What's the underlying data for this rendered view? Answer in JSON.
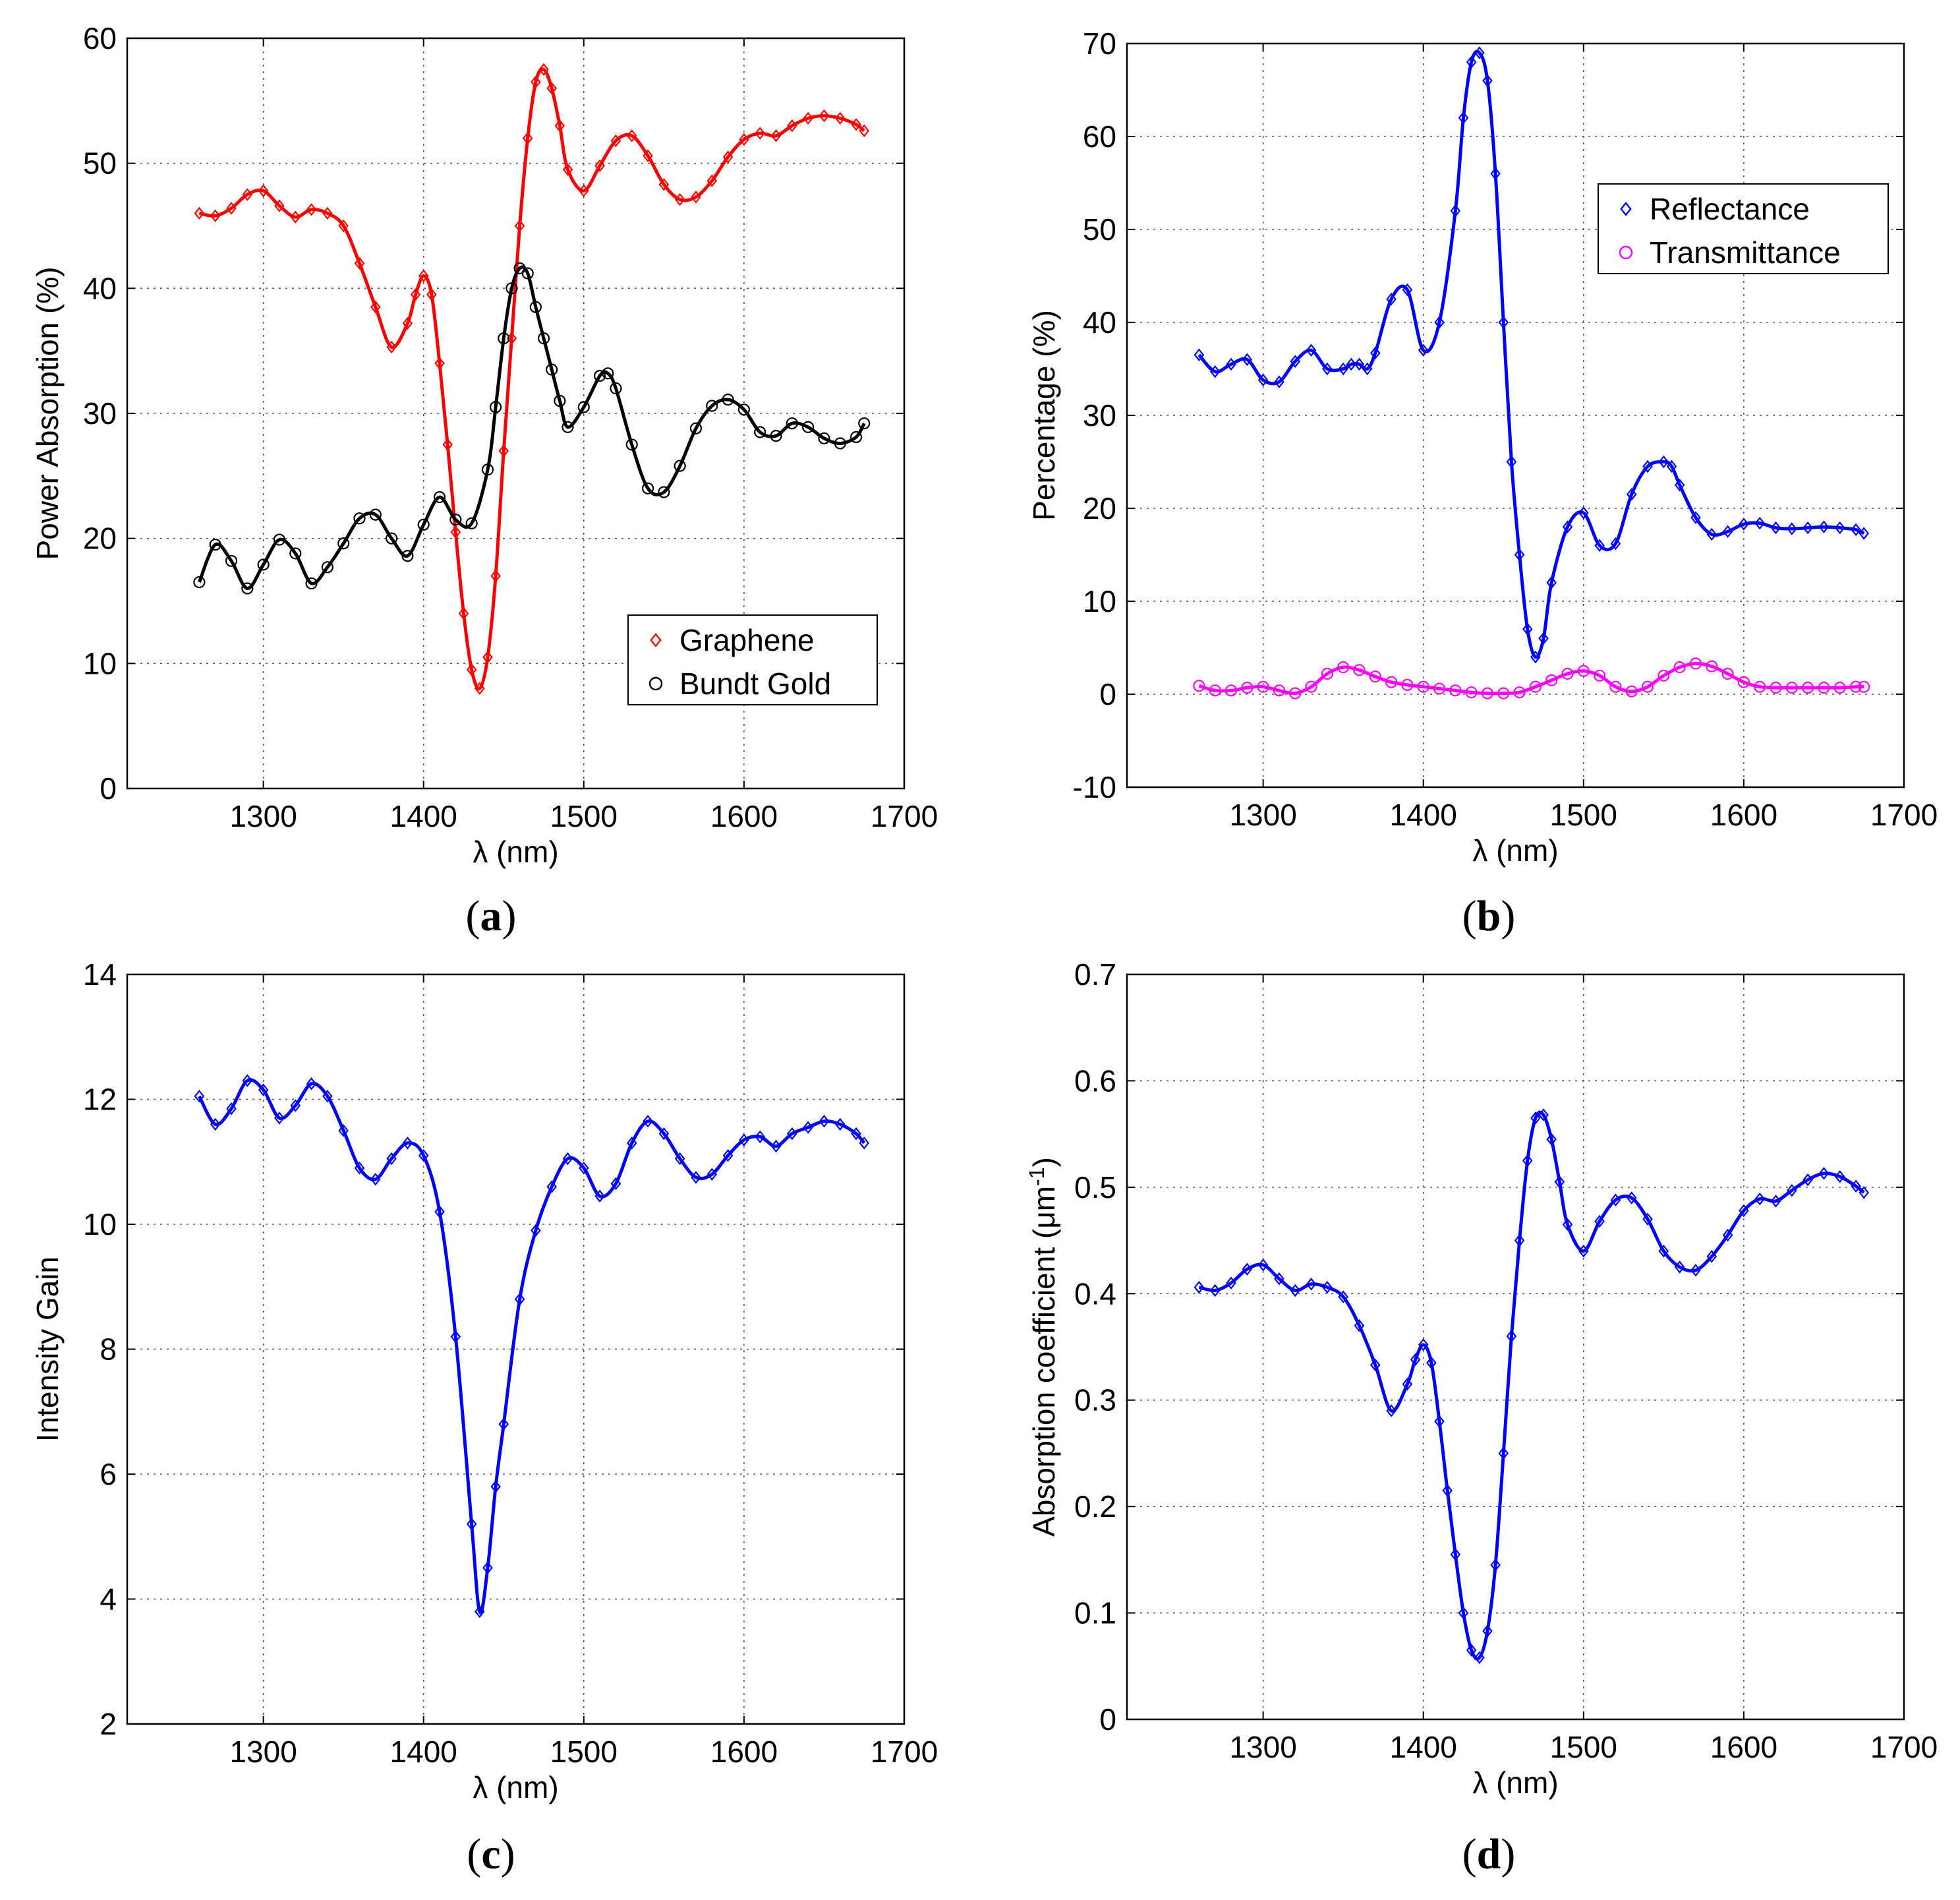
{
  "panels": [
    {
      "id": "a",
      "label_open": "(",
      "label_letter": "a",
      "label_close": ")"
    },
    {
      "id": "b",
      "label_open": "(",
      "label_letter": "b",
      "label_close": ")"
    },
    {
      "id": "c",
      "label_open": "(",
      "label_letter": "c",
      "label_close": ")"
    },
    {
      "id": "d",
      "label_open": "(",
      "label_letter": "d",
      "label_close": ")"
    }
  ],
  "chart_data": [
    {
      "panel": "a",
      "type": "line",
      "title": "",
      "xlabel": "λ (nm)",
      "ylabel": "Power Absorption (%)",
      "xlim": [
        1215,
        1700
      ],
      "ylim": [
        0,
        60
      ],
      "xticks": [
        1300,
        1400,
        1500,
        1600,
        1700
      ],
      "yticks": [
        0,
        10,
        20,
        30,
        40,
        50,
        60
      ],
      "grid": true,
      "legend_position": "bottom-right",
      "series": [
        {
          "name": "Graphene",
          "color": "#ff0000",
          "marker": "diamond",
          "x": [
            1260,
            1270,
            1280,
            1290,
            1300,
            1310,
            1320,
            1330,
            1340,
            1350,
            1360,
            1370,
            1380,
            1390,
            1395,
            1400,
            1405,
            1410,
            1415,
            1420,
            1425,
            1430,
            1435,
            1440,
            1445,
            1450,
            1455,
            1460,
            1465,
            1470,
            1475,
            1480,
            1485,
            1490,
            1500,
            1510,
            1520,
            1530,
            1540,
            1550,
            1560,
            1570,
            1580,
            1590,
            1600,
            1610,
            1620,
            1630,
            1640,
            1650,
            1660,
            1670,
            1675
          ],
          "values": [
            46,
            45.8,
            46.4,
            47.5,
            47.8,
            46.6,
            45.7,
            46.3,
            46,
            45,
            42,
            38.5,
            35.3,
            37.2,
            39.5,
            41,
            39.5,
            34,
            27.5,
            20.5,
            14,
            9.5,
            8,
            10.5,
            17,
            27,
            36,
            45,
            52,
            56.5,
            57.5,
            56,
            53,
            49.5,
            47.8,
            49.8,
            51.8,
            52.2,
            50.6,
            48.3,
            47.1,
            47.3,
            48.6,
            50.5,
            51.9,
            52.4,
            52.2,
            53,
            53.6,
            53.8,
            53.6,
            53.1,
            52.6
          ]
        },
        {
          "name": "Bundt Gold",
          "color": "#000000",
          "marker": "circle",
          "x": [
            1260,
            1270,
            1280,
            1290,
            1300,
            1310,
            1320,
            1330,
            1340,
            1350,
            1360,
            1370,
            1380,
            1390,
            1400,
            1410,
            1420,
            1430,
            1440,
            1445,
            1450,
            1455,
            1460,
            1465,
            1470,
            1475,
            1480,
            1485,
            1490,
            1500,
            1510,
            1515,
            1520,
            1530,
            1540,
            1550,
            1560,
            1570,
            1580,
            1590,
            1600,
            1610,
            1620,
            1630,
            1640,
            1650,
            1660,
            1670,
            1675
          ],
          "values": [
            16.5,
            19.5,
            18.2,
            16,
            17.9,
            19.9,
            18.8,
            16.4,
            17.7,
            19.6,
            21.6,
            21.9,
            20,
            18.6,
            21.1,
            23.3,
            21.5,
            21.2,
            25.5,
            30.5,
            36,
            40,
            41.6,
            41.2,
            38.5,
            36,
            33.5,
            31,
            28.9,
            30.5,
            33,
            33.2,
            32,
            27.5,
            24,
            23.7,
            25.8,
            28.8,
            30.6,
            31.1,
            30.3,
            28.5,
            28.2,
            29.2,
            28.9,
            28,
            27.6,
            28.1,
            29.2
          ]
        }
      ]
    },
    {
      "panel": "b",
      "type": "line",
      "title": "",
      "xlabel": "λ (nm)",
      "ylabel": "Percentage (%)",
      "xlim": [
        1215,
        1700
      ],
      "ylim": [
        -10,
        70
      ],
      "xticks": [
        1300,
        1400,
        1500,
        1600,
        1700
      ],
      "yticks": [
        -10,
        0,
        10,
        20,
        30,
        40,
        50,
        60,
        70
      ],
      "grid": true,
      "legend_position": "top-right",
      "series": [
        {
          "name": "Reflectance",
          "color": "#0000ff",
          "marker": "diamond",
          "x": [
            1260,
            1270,
            1280,
            1290,
            1300,
            1310,
            1320,
            1330,
            1340,
            1350,
            1355,
            1360,
            1365,
            1370,
            1380,
            1390,
            1400,
            1410,
            1420,
            1425,
            1430,
            1435,
            1440,
            1445,
            1450,
            1455,
            1460,
            1465,
            1470,
            1475,
            1480,
            1490,
            1500,
            1510,
            1520,
            1530,
            1540,
            1550,
            1555,
            1560,
            1570,
            1580,
            1590,
            1600,
            1610,
            1620,
            1630,
            1640,
            1650,
            1660,
            1670,
            1675
          ],
          "values": [
            36.5,
            34.7,
            35.5,
            36,
            33.8,
            33.6,
            35.8,
            37,
            35,
            35,
            35.5,
            35.5,
            35,
            36.7,
            42.5,
            43.5,
            37,
            40,
            52,
            62,
            68,
            69,
            66,
            56,
            40,
            25,
            15,
            7,
            4,
            6,
            12,
            18,
            19.5,
            16,
            16.2,
            21.5,
            24.5,
            25,
            24.5,
            22.5,
            19,
            17.2,
            17.5,
            18.3,
            18.4,
            17.9,
            17.8,
            17.9,
            18,
            17.9,
            17.7,
            17.3
          ]
        },
        {
          "name": "Transmittance",
          "color": "#ff00ff",
          "marker": "circle",
          "x": [
            1260,
            1270,
            1280,
            1290,
            1300,
            1310,
            1320,
            1330,
            1340,
            1350,
            1360,
            1370,
            1380,
            1390,
            1400,
            1410,
            1420,
            1430,
            1440,
            1450,
            1460,
            1470,
            1480,
            1490,
            1500,
            1510,
            1520,
            1530,
            1540,
            1550,
            1560,
            1570,
            1580,
            1590,
            1600,
            1610,
            1620,
            1630,
            1640,
            1650,
            1660,
            1670,
            1675
          ],
          "values": [
            0.9,
            0.4,
            0.4,
            0.7,
            0.8,
            0.4,
            0.1,
            0.8,
            2.2,
            2.9,
            2.6,
            1.9,
            1.3,
            1,
            0.8,
            0.6,
            0.4,
            0.2,
            0.1,
            0.1,
            0.2,
            0.8,
            1.5,
            2.2,
            2.5,
            2,
            0.8,
            0.3,
            0.8,
            2,
            2.9,
            3.3,
            3,
            2.2,
            1.3,
            0.8,
            0.7,
            0.7,
            0.7,
            0.7,
            0.7,
            0.8,
            0.8
          ]
        }
      ]
    },
    {
      "panel": "c",
      "type": "line",
      "title": "",
      "xlabel": "λ (nm)",
      "ylabel": "Intensity Gain",
      "xlim": [
        1215,
        1700
      ],
      "ylim": [
        2,
        14
      ],
      "xticks": [
        1300,
        1400,
        1500,
        1600,
        1700
      ],
      "yticks": [
        2,
        4,
        6,
        8,
        10,
        12,
        14
      ],
      "grid": true,
      "series": [
        {
          "name": "Intensity Gain",
          "color": "#0000ff",
          "marker": "diamond",
          "x": [
            1260,
            1270,
            1280,
            1290,
            1300,
            1310,
            1320,
            1330,
            1340,
            1350,
            1360,
            1370,
            1380,
            1390,
            1400,
            1410,
            1420,
            1430,
            1435,
            1440,
            1445,
            1450,
            1460,
            1470,
            1480,
            1490,
            1500,
            1510,
            1520,
            1530,
            1540,
            1550,
            1560,
            1570,
            1580,
            1590,
            1600,
            1610,
            1620,
            1630,
            1640,
            1650,
            1660,
            1670,
            1675
          ],
          "values": [
            12.05,
            11.6,
            11.85,
            12.3,
            12.15,
            11.7,
            11.9,
            12.25,
            12.05,
            11.5,
            10.9,
            10.72,
            11.05,
            11.3,
            11.1,
            10.2,
            8.2,
            5.2,
            3.8,
            4.5,
            5.8,
            6.8,
            8.8,
            9.9,
            10.6,
            11.05,
            10.9,
            10.45,
            10.65,
            11.3,
            11.65,
            11.45,
            11.05,
            10.75,
            10.8,
            11.1,
            11.35,
            11.4,
            11.25,
            11.45,
            11.55,
            11.65,
            11.6,
            11.45,
            11.3
          ]
        }
      ]
    },
    {
      "panel": "d",
      "type": "line",
      "title": "",
      "xlabel": "λ (nm)",
      "ylabel_main": "Absorption coefficient (μm",
      "ylabel_sup": "-1",
      "ylabel_close": ")",
      "xlim": [
        1215,
        1700
      ],
      "ylim": [
        0,
        0.7
      ],
      "xticks": [
        1300,
        1400,
        1500,
        1600,
        1700
      ],
      "yticks": [
        0,
        0.1,
        0.2,
        0.3,
        0.4,
        0.5,
        0.6,
        0.7
      ],
      "grid": true,
      "series": [
        {
          "name": "Absorption coefficient",
          "color": "#0000ff",
          "marker": "diamond",
          "x": [
            1260,
            1270,
            1280,
            1290,
            1300,
            1310,
            1320,
            1330,
            1340,
            1350,
            1360,
            1370,
            1380,
            1390,
            1395,
            1400,
            1405,
            1410,
            1415,
            1420,
            1425,
            1430,
            1435,
            1440,
            1445,
            1450,
            1455,
            1460,
            1465,
            1470,
            1475,
            1480,
            1485,
            1490,
            1500,
            1510,
            1520,
            1530,
            1540,
            1550,
            1560,
            1570,
            1580,
            1590,
            1600,
            1610,
            1620,
            1630,
            1640,
            1650,
            1660,
            1670,
            1675
          ],
          "values": [
            0.406,
            0.403,
            0.41,
            0.423,
            0.427,
            0.414,
            0.403,
            0.409,
            0.406,
            0.397,
            0.37,
            0.333,
            0.29,
            0.315,
            0.338,
            0.352,
            0.335,
            0.28,
            0.215,
            0.155,
            0.1,
            0.065,
            0.058,
            0.083,
            0.145,
            0.25,
            0.36,
            0.45,
            0.525,
            0.565,
            0.568,
            0.545,
            0.505,
            0.465,
            0.44,
            0.468,
            0.488,
            0.49,
            0.47,
            0.44,
            0.425,
            0.422,
            0.435,
            0.455,
            0.478,
            0.489,
            0.487,
            0.497,
            0.507,
            0.513,
            0.51,
            0.501,
            0.495
          ]
        }
      ]
    }
  ]
}
